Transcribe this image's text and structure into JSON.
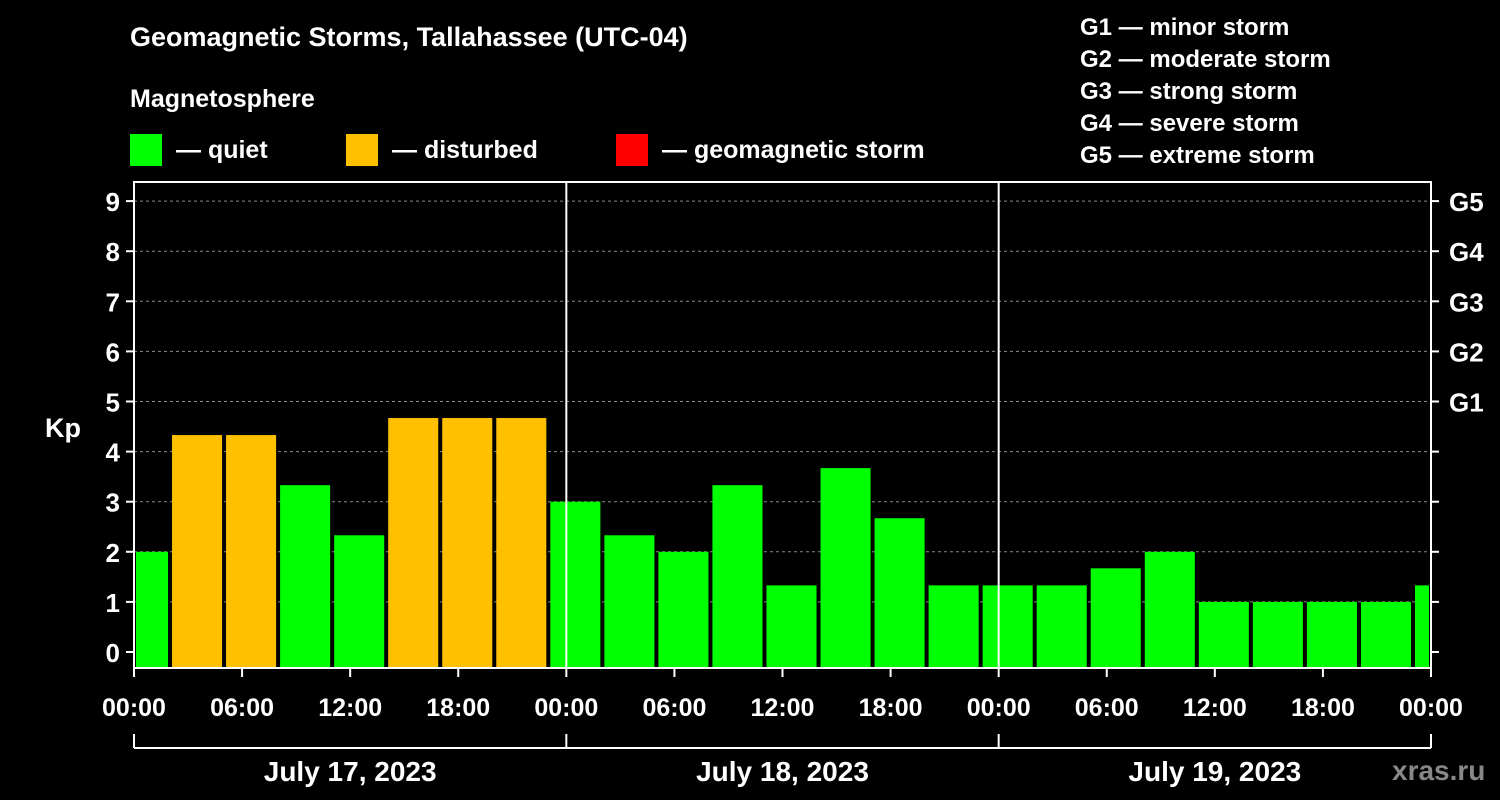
{
  "title": "Geomagnetic Storms, Tallahassee (UTC-04)",
  "subtitle": "Magnetosphere",
  "legend": [
    {
      "label": "— quiet",
      "color": "#00ff00"
    },
    {
      "label": "— disturbed",
      "color": "#ffc000"
    },
    {
      "label": "— geomagnetic storm",
      "color": "#ff0000"
    }
  ],
  "g_legend": [
    "G1 — minor storm",
    "G2 — moderate storm",
    "G3 — strong storm",
    "G4 — severe storm",
    "G5 — extreme storm"
  ],
  "watermark": "xras.ru",
  "chart_data": {
    "type": "bar",
    "title": "Geomagnetic Storms, Tallahassee (UTC-04)",
    "ylabel": "Kp",
    "ylim": [
      0,
      9
    ],
    "y_ticks": [
      "0",
      "1",
      "2",
      "3",
      "4",
      "5",
      "6",
      "7",
      "8",
      "9"
    ],
    "right_ticks": [
      {
        "kp": 5,
        "label": "G1"
      },
      {
        "kp": 6,
        "label": "G2"
      },
      {
        "kp": 7,
        "label": "G3"
      },
      {
        "kp": 8,
        "label": "G4"
      },
      {
        "kp": 9,
        "label": "G5"
      }
    ],
    "x_tick_labels": [
      "00:00",
      "06:00",
      "12:00",
      "18:00",
      "00:00",
      "06:00",
      "12:00",
      "18:00",
      "00:00",
      "06:00",
      "12:00",
      "18:00",
      "00:00"
    ],
    "dates": [
      "July 17, 2023",
      "July 18, 2023",
      "July 19, 2023"
    ],
    "x_range_hours": [
      0,
      72
    ],
    "bars": [
      {
        "start": 0,
        "end": 2,
        "value": 2.0,
        "level": "quiet"
      },
      {
        "start": 2,
        "end": 5,
        "value": 4.33,
        "level": "disturbed"
      },
      {
        "start": 5,
        "end": 8,
        "value": 4.33,
        "level": "disturbed"
      },
      {
        "start": 8,
        "end": 11,
        "value": 3.33,
        "level": "quiet"
      },
      {
        "start": 11,
        "end": 14,
        "value": 2.33,
        "level": "quiet"
      },
      {
        "start": 14,
        "end": 17,
        "value": 4.67,
        "level": "disturbed"
      },
      {
        "start": 17,
        "end": 20,
        "value": 4.67,
        "level": "disturbed"
      },
      {
        "start": 20,
        "end": 23,
        "value": 4.67,
        "level": "disturbed"
      },
      {
        "start": 23,
        "end": 26,
        "value": 3.0,
        "level": "quiet"
      },
      {
        "start": 26,
        "end": 29,
        "value": 2.33,
        "level": "quiet"
      },
      {
        "start": 29,
        "end": 32,
        "value": 2.0,
        "level": "quiet"
      },
      {
        "start": 32,
        "end": 35,
        "value": 3.33,
        "level": "quiet"
      },
      {
        "start": 35,
        "end": 38,
        "value": 1.33,
        "level": "quiet"
      },
      {
        "start": 38,
        "end": 41,
        "value": 3.67,
        "level": "quiet"
      },
      {
        "start": 41,
        "end": 44,
        "value": 2.67,
        "level": "quiet"
      },
      {
        "start": 44,
        "end": 47,
        "value": 1.33,
        "level": "quiet"
      },
      {
        "start": 47,
        "end": 50,
        "value": 1.33,
        "level": "quiet"
      },
      {
        "start": 50,
        "end": 53,
        "value": 1.33,
        "level": "quiet"
      },
      {
        "start": 53,
        "end": 56,
        "value": 1.67,
        "level": "quiet"
      },
      {
        "start": 56,
        "end": 59,
        "value": 2.0,
        "level": "quiet"
      },
      {
        "start": 59,
        "end": 62,
        "value": 1.0,
        "level": "quiet"
      },
      {
        "start": 62,
        "end": 65,
        "value": 1.0,
        "level": "quiet"
      },
      {
        "start": 65,
        "end": 68,
        "value": 1.0,
        "level": "quiet"
      },
      {
        "start": 68,
        "end": 71,
        "value": 1.0,
        "level": "quiet"
      },
      {
        "start": 71,
        "end": 72,
        "value": 1.33,
        "level": "quiet"
      }
    ],
    "level_colors": {
      "quiet": "#00ff00",
      "disturbed": "#ffc000",
      "storm": "#ff0000"
    }
  }
}
